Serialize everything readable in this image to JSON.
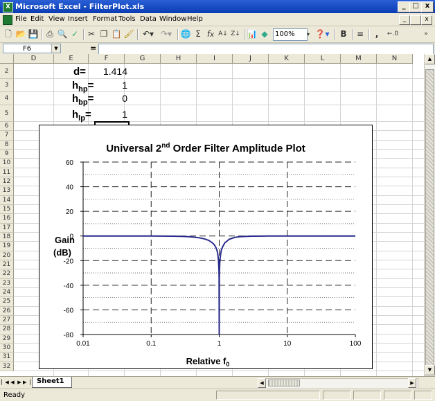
{
  "window": {
    "title": "Microsoft Excel - FilterPlot.xls",
    "minimize": "_",
    "restore": "□",
    "close": "x"
  },
  "menu": {
    "items": [
      "File",
      "Edit",
      "View",
      "Insert",
      "Format",
      "Tools",
      "Data",
      "Window",
      "Help"
    ],
    "doc_minimize": "_",
    "doc_restore": " ",
    "doc_close": "x"
  },
  "toolbar": {
    "zoom": "100%",
    "bold": "B"
  },
  "formula_bar": {
    "name_box": "F6",
    "equals": "=",
    "formula": ""
  },
  "columns": [
    "D",
    "E",
    "F",
    "G",
    "H",
    "I",
    "J",
    "K",
    "L",
    "M",
    "N"
  ],
  "rows": [
    "2",
    "3",
    "4",
    "5",
    "6",
    "7",
    "8",
    "9",
    "10",
    "11",
    "12",
    "13",
    "14",
    "15",
    "16",
    "17",
    "18",
    "19",
    "20",
    "21",
    "22",
    "23",
    "24",
    "25",
    "26",
    "27",
    "28",
    "29",
    "30",
    "31",
    "32"
  ],
  "params": [
    {
      "label": "d=",
      "sub": "",
      "value": "1.414"
    },
    {
      "label": "h",
      "sub": "hp",
      "eq": "=",
      "value": "1"
    },
    {
      "label": "h",
      "sub": "bp",
      "eq": "=",
      "value": "0"
    },
    {
      "label": "h",
      "sub": "lp",
      "eq": "=",
      "value": "1"
    }
  ],
  "chart_data": {
    "type": "line",
    "title": "Universal 2nd Order Filter Amplitude Plot",
    "title_main": "Universal 2",
    "title_sup": "nd",
    "title_rest": " Order Filter Amplitude Plot",
    "xlabel_main": "Relative f",
    "xlabel_sub": "0",
    "ylabel": "Gain",
    "ylabel2": "(dB)",
    "xscale": "log",
    "xlim": [
      0.01,
      100
    ],
    "ylim": [
      -80,
      60
    ],
    "xticks": [
      "0.01",
      "0.1",
      "1",
      "10",
      "100"
    ],
    "yticks": [
      "60",
      "40",
      "20",
      "0",
      "-20",
      "-40",
      "-60",
      "-80"
    ],
    "grid": true,
    "series": [
      {
        "color": "#2a2a8c",
        "x": [
          0.01,
          0.05,
          0.1,
          0.2,
          0.3,
          0.4,
          0.5,
          0.6,
          0.7,
          0.8,
          0.85,
          0.9,
          0.93,
          0.95,
          0.97,
          0.98,
          0.99,
          0.995,
          1.0,
          1.005,
          1.01,
          1.02,
          1.03,
          1.05,
          1.08,
          1.1,
          1.2,
          1.4,
          1.7,
          2,
          3,
          5,
          10,
          100
        ],
        "y": [
          0,
          -0.01,
          -0.04,
          -0.17,
          -0.4,
          -0.8,
          -1.4,
          -2.3,
          -3.6,
          -5.7,
          -7.3,
          -9.8,
          -12,
          -14.5,
          -18.4,
          -21.8,
          -27.8,
          -33.7,
          -80,
          -33.7,
          -27.8,
          -21.8,
          -18.4,
          -14.5,
          -11,
          -9.8,
          -5.7,
          -2.7,
          -1.1,
          -0.6,
          -0.17,
          -0.04,
          -0.01,
          0
        ]
      }
    ]
  },
  "sheet_tab": "Sheet1",
  "status": "Ready"
}
